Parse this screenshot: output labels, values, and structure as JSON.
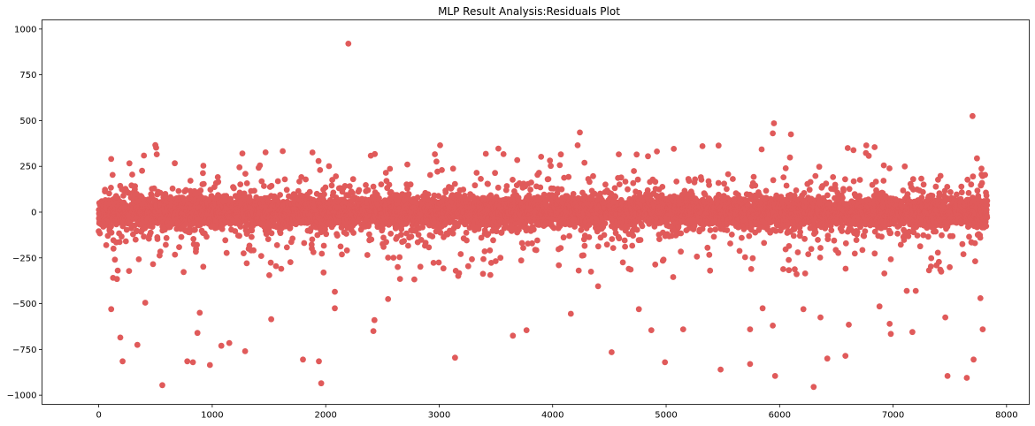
{
  "chart_data": {
    "type": "scatter",
    "title": "MLP Result Analysis:Residuals Plot",
    "xlabel": "",
    "ylabel": "",
    "xlim": [
      -500,
      8200
    ],
    "ylim": [
      -1050,
      1050
    ],
    "xticks": [
      0,
      1000,
      2000,
      3000,
      4000,
      5000,
      6000,
      7000,
      8000
    ],
    "xtick_labels": [
      "0",
      "1000",
      "2000",
      "3000",
      "4000",
      "5000",
      "6000",
      "7000",
      "8000"
    ],
    "yticks": [
      -1000,
      -750,
      -500,
      -250,
      0,
      250,
      500,
      750,
      1000
    ],
    "ytick_labels": [
      "−1000",
      "−750",
      "−500",
      "−250",
      "0",
      "250",
      "500",
      "750",
      "1000"
    ],
    "marker_color": "#e05a5a",
    "grid": false,
    "n_points_approx": 7830,
    "core_band": [
      -120,
      120
    ],
    "notable_points": [
      {
        "x": 2200,
        "y": 920
      },
      {
        "x": 7700,
        "y": 525
      },
      {
        "x": 5950,
        "y": 485
      },
      {
        "x": 6100,
        "y": 425
      },
      {
        "x": 5940,
        "y": 430
      },
      {
        "x": 4240,
        "y": 435
      },
      {
        "x": 4220,
        "y": 365
      },
      {
        "x": 6600,
        "y": 350
      },
      {
        "x": 5320,
        "y": 360
      },
      {
        "x": 4740,
        "y": 315
      },
      {
        "x": 4840,
        "y": 305
      },
      {
        "x": 110,
        "y": 290
      },
      {
        "x": 2720,
        "y": 260
      },
      {
        "x": 4280,
        "y": 270
      },
      {
        "x": 1420,
        "y": 255
      },
      {
        "x": 1240,
        "y": 245
      },
      {
        "x": 1950,
        "y": 230
      },
      {
        "x": 2530,
        "y": 215
      },
      {
        "x": 3330,
        "y": 215
      },
      {
        "x": 3880,
        "y": 215
      },
      {
        "x": 7780,
        "y": 205
      },
      {
        "x": 560,
        "y": -945
      },
      {
        "x": 1960,
        "y": -935
      },
      {
        "x": 6300,
        "y": -955
      },
      {
        "x": 7650,
        "y": -905
      },
      {
        "x": 7480,
        "y": -895
      },
      {
        "x": 5960,
        "y": -895
      },
      {
        "x": 5480,
        "y": -860
      },
      {
        "x": 5740,
        "y": -830
      },
      {
        "x": 980,
        "y": -835
      },
      {
        "x": 210,
        "y": -815
      },
      {
        "x": 780,
        "y": -815
      },
      {
        "x": 830,
        "y": -820
      },
      {
        "x": 1800,
        "y": -805
      },
      {
        "x": 1940,
        "y": -815
      },
      {
        "x": 3140,
        "y": -795
      },
      {
        "x": 4990,
        "y": -820
      },
      {
        "x": 6420,
        "y": -800
      },
      {
        "x": 7710,
        "y": -805
      },
      {
        "x": 6580,
        "y": -785
      },
      {
        "x": 4520,
        "y": -765
      },
      {
        "x": 1290,
        "y": -760
      },
      {
        "x": 1080,
        "y": -730
      },
      {
        "x": 1150,
        "y": -715
      },
      {
        "x": 340,
        "y": -725
      },
      {
        "x": 190,
        "y": -685
      },
      {
        "x": 3650,
        "y": -675
      },
      {
        "x": 2420,
        "y": -650
      },
      {
        "x": 3770,
        "y": -645
      },
      {
        "x": 4870,
        "y": -645
      },
      {
        "x": 5150,
        "y": -640
      },
      {
        "x": 7170,
        "y": -655
      },
      {
        "x": 6980,
        "y": -665
      },
      {
        "x": 7790,
        "y": -640
      },
      {
        "x": 870,
        "y": -660
      },
      {
        "x": 5740,
        "y": -640
      },
      {
        "x": 5940,
        "y": -620
      },
      {
        "x": 6610,
        "y": -615
      },
      {
        "x": 6970,
        "y": -610
      },
      {
        "x": 1520,
        "y": -585
      },
      {
        "x": 2430,
        "y": -590
      },
      {
        "x": 7460,
        "y": -575
      },
      {
        "x": 6360,
        "y": -575
      },
      {
        "x": 4160,
        "y": -555
      },
      {
        "x": 890,
        "y": -550
      },
      {
        "x": 110,
        "y": -530
      },
      {
        "x": 2080,
        "y": -525
      },
      {
        "x": 6210,
        "y": -530
      },
      {
        "x": 4760,
        "y": -530
      },
      {
        "x": 5850,
        "y": -525
      },
      {
        "x": 6880,
        "y": -515
      },
      {
        "x": 410,
        "y": -495
      },
      {
        "x": 2080,
        "y": -435
      },
      {
        "x": 4400,
        "y": -405
      },
      {
        "x": 7120,
        "y": -430
      },
      {
        "x": 7200,
        "y": -430
      },
      {
        "x": 7770,
        "y": -470
      },
      {
        "x": 2550,
        "y": -475
      }
    ]
  }
}
